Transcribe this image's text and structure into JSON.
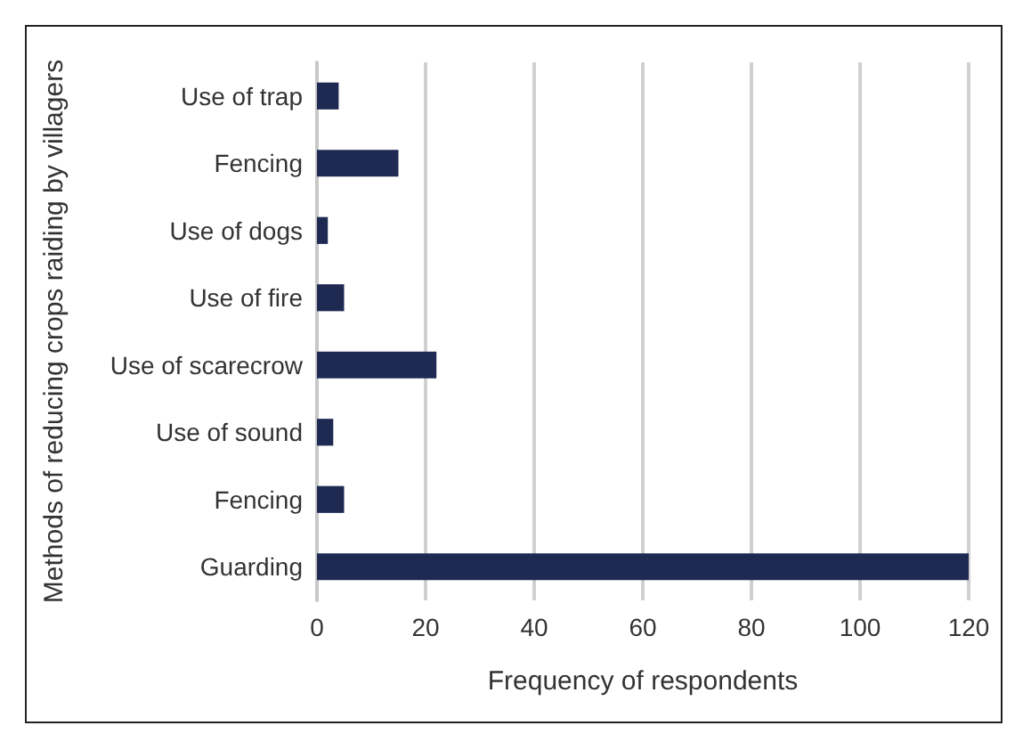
{
  "chart_data": {
    "type": "bar",
    "orientation": "horizontal",
    "xlabel": "Frequency of respondents",
    "ylabel": "Methods of reducing crops raiding by villagers",
    "categories": [
      "Use of trap",
      "Fencing",
      "Use of dogs",
      "Use of fire",
      "Use of scarecrow",
      "Use of sound",
      "Fencing",
      "Guarding"
    ],
    "values": [
      4,
      15,
      2,
      5,
      22,
      3,
      5,
      120
    ],
    "color": "#1f2a52",
    "xlim": [
      0,
      120
    ],
    "xticks": [
      0,
      20,
      40,
      60,
      80,
      100,
      120
    ],
    "grid": "x"
  }
}
